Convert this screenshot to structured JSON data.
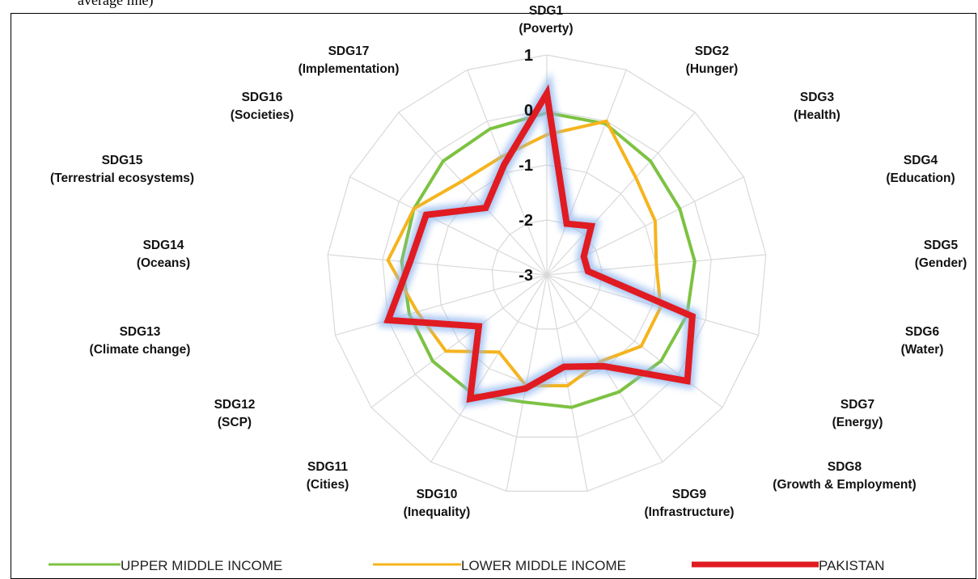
{
  "caption": "average line)",
  "chart_data": {
    "type": "radar",
    "categories": [
      [
        "SDG1",
        "(Poverty)"
      ],
      [
        "SDG2",
        "(Hunger)"
      ],
      [
        "SDG3",
        "(Health)"
      ],
      [
        "SDG4",
        "(Education)"
      ],
      [
        "SDG5",
        "(Gender)"
      ],
      [
        "SDG6",
        "(Water)"
      ],
      [
        "SDG7",
        "(Energy)"
      ],
      [
        "SDG8",
        "(Growth & Employment)"
      ],
      [
        "SDG9",
        "(Infrastructure)"
      ],
      [
        "SDG10",
        "(Inequality)"
      ],
      [
        "SDG11",
        "(Cities)"
      ],
      [
        "SDG12",
        "(SCP)"
      ],
      [
        "SDG13",
        "(Climate change)"
      ],
      [
        "SDG14",
        "(Oceans)"
      ],
      [
        "SDG15",
        "(Terrestrial ecosystems)"
      ],
      [
        "SDG16",
        "(Societies)"
      ],
      [
        "SDG17",
        "(Implementation)"
      ]
    ],
    "rlim": [
      -3,
      1
    ],
    "ticks": [
      1,
      0,
      -1,
      -2,
      -3
    ],
    "tick_labels": [
      "1",
      "0",
      "-1",
      "-2",
      "-3"
    ],
    "grid": true,
    "legend_position": "bottom",
    "series": [
      {
        "name": "UPPER MIDDLE INCOME",
        "color": "#7dc242",
        "values": [
          -0.05,
          -0.05,
          -0.2,
          -0.3,
          -0.3,
          -0.35,
          -0.4,
          -0.5,
          -0.55,
          -0.65,
          -0.45,
          -0.4,
          -0.4,
          -0.35,
          -0.3,
          -0.2,
          -0.15
        ]
      },
      {
        "name": "LOWER MIDDLE INCOME",
        "color": "#f5b41e",
        "values": [
          -0.45,
          0.0,
          -0.6,
          -0.8,
          -1.0,
          -0.85,
          -0.85,
          -1.15,
          -0.95,
          -0.95,
          -1.35,
          -0.7,
          -0.55,
          -0.1,
          -0.3,
          -0.7,
          -0.7
        ]
      },
      {
        "name": "PAKISTAN",
        "color": "#e01b22",
        "values": [
          0.3,
          -2.0,
          -1.8,
          -2.25,
          -2.25,
          -0.25,
          0.2,
          -1.05,
          -1.3,
          -0.9,
          -0.35,
          -1.45,
          0.0,
          -0.5,
          -0.55,
          -1.35,
          -0.85
        ]
      }
    ]
  }
}
